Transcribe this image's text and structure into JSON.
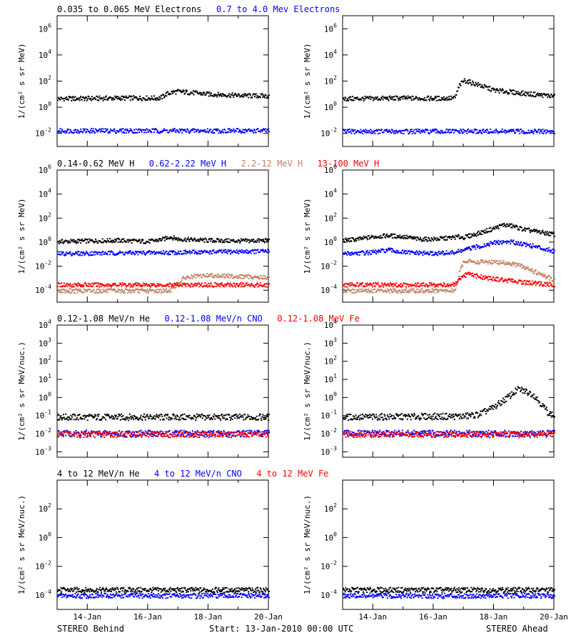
{
  "footer": {
    "left": "STEREO Behind",
    "center": "Start: 13-Jan-2010 00:00 UTC",
    "right": "STEREO Ahead"
  },
  "x_ticks": [
    "14-Jan",
    "16-Jan",
    "18-Jan",
    "20-Jan"
  ],
  "colors": {
    "black": "#000000",
    "blue": "#0000ff",
    "tan": "#c08060",
    "red": "#ff0000"
  },
  "chart_data": [
    {
      "type": "scatter",
      "row": 1,
      "ylabel": "1/(cm² s sr MeV)",
      "ylog": true,
      "ylim_exp": [
        -3,
        7
      ],
      "y_tick_exponents": [
        -2,
        0,
        2,
        4,
        6
      ],
      "x_unit": "days since 13-Jan-2010 00:00 UTC",
      "xlim": [
        0,
        7
      ],
      "legend": [
        {
          "name": "0.035 to 0.065 MeV Electrons",
          "color": "#000000"
        },
        {
          "name": "0.7 to 4.0 Mev Electrons",
          "color": "#0000ff"
        }
      ],
      "panels": [
        {
          "side": "STEREO Behind",
          "series": [
            {
              "name": "0.035 to 0.065 MeV Electrons",
              "color": "#000000",
              "x": [
                0,
                1,
                2,
                3,
                3.4,
                3.6,
                3.8,
                4,
                4.5,
                5,
                6,
                7
              ],
              "log10_y": [
                0.7,
                0.72,
                0.75,
                0.75,
                0.75,
                1.05,
                1.2,
                1.25,
                1.15,
                1.05,
                0.95,
                0.9
              ]
            },
            {
              "name": "0.7 to 4.0 Mev Electrons",
              "color": "#0000ff",
              "x": [
                0,
                7
              ],
              "log10_y": [
                -1.75,
                -1.75
              ]
            }
          ]
        },
        {
          "side": "STEREO Ahead",
          "series": [
            {
              "name": "0.035 to 0.065 MeV Electrons",
              "color": "#000000",
              "x": [
                0,
                1,
                2,
                3,
                3.7,
                3.85,
                4,
                4.5,
                5,
                6,
                7
              ],
              "log10_y": [
                0.7,
                0.72,
                0.75,
                0.72,
                0.75,
                1.7,
                2.1,
                1.75,
                1.35,
                1.1,
                0.9
              ]
            },
            {
              "name": "0.7 to 4.0 Mev Electrons",
              "color": "#0000ff",
              "x": [
                0,
                7
              ],
              "log10_y": [
                -1.8,
                -1.8
              ]
            }
          ]
        }
      ]
    },
    {
      "type": "scatter",
      "row": 2,
      "ylabel": "1/(cm² s sr MeV)",
      "ylog": true,
      "ylim_exp": [
        -5,
        6
      ],
      "y_tick_exponents": [
        -4,
        -2,
        0,
        2,
        4,
        6
      ],
      "x_unit": "days since 13-Jan-2010 00:00 UTC",
      "xlim": [
        0,
        7
      ],
      "legend": [
        {
          "name": "0.14-0.62 MeV H",
          "color": "#000000"
        },
        {
          "name": "0.62-2.22 MeV H",
          "color": "#0000ff"
        },
        {
          "name": "2.2-12 MeV H",
          "color": "#c08060"
        },
        {
          "name": "13-100 MeV H",
          "color": "#ff0000"
        }
      ],
      "panels": [
        {
          "side": "STEREO Behind",
          "series": [
            {
              "name": "0.14-0.62 MeV H",
              "color": "#000000",
              "x": [
                0,
                1,
                2,
                3,
                3.5,
                3.7,
                4,
                5,
                6,
                7
              ],
              "log10_y": [
                0.1,
                0.15,
                0.2,
                0.1,
                0.3,
                0.5,
                0.3,
                0.2,
                0.15,
                0.2
              ]
            },
            {
              "name": "0.62-2.22 MeV H",
              "color": "#0000ff",
              "x": [
                0,
                2,
                4,
                7
              ],
              "log10_y": [
                -0.9,
                -0.85,
                -0.8,
                -0.7
              ]
            },
            {
              "name": "2.2-12 MeV H",
              "color": "#c08060",
              "x": [
                0,
                3.7,
                3.9,
                4.2,
                5,
                6,
                7
              ],
              "log10_y": [
                -4.0,
                -4.0,
                -3.6,
                -2.9,
                -2.7,
                -2.8,
                -2.9
              ]
            },
            {
              "name": "13-100 MeV H",
              "color": "#ff0000",
              "x": [
                0,
                7
              ],
              "log10_y": [
                -3.5,
                -3.5
              ]
            }
          ]
        },
        {
          "side": "STEREO Ahead",
          "series": [
            {
              "name": "0.14-0.62 MeV H",
              "color": "#000000",
              "x": [
                0,
                0.5,
                1,
                1.5,
                2,
                2.5,
                3,
                3.5,
                3.8,
                4,
                4.5,
                5,
                5.3,
                5.6,
                6,
                6.5,
                7
              ],
              "log10_y": [
                0.2,
                0.3,
                0.5,
                0.6,
                0.5,
                0.3,
                0.3,
                0.4,
                0.5,
                0.45,
                0.8,
                1.2,
                1.5,
                1.4,
                1.1,
                0.9,
                0.7
              ]
            },
            {
              "name": "0.62-2.22 MeV H",
              "color": "#0000ff",
              "x": [
                0,
                1,
                1.5,
                2,
                3,
                3.7,
                4,
                4.5,
                5,
                5.5,
                6,
                6.5,
                7
              ],
              "log10_y": [
                -0.9,
                -0.8,
                -0.6,
                -0.8,
                -0.9,
                -0.8,
                -0.6,
                -0.3,
                0.0,
                0.1,
                -0.1,
                -0.4,
                -0.7
              ]
            },
            {
              "name": "2.2-12 MeV H",
              "color": "#c08060",
              "x": [
                0,
                3.7,
                3.85,
                4,
                4.5,
                5,
                5.5,
                6,
                6.5,
                7
              ],
              "log10_y": [
                -4.0,
                -4.0,
                -2.5,
                -1.5,
                -1.6,
                -1.6,
                -1.7,
                -2.0,
                -2.6,
                -3.1
              ]
            },
            {
              "name": "13-100 MeV H",
              "color": "#ff0000",
              "x": [
                0,
                3.7,
                3.9,
                4.1,
                4.5,
                5,
                6,
                7
              ],
              "log10_y": [
                -3.5,
                -3.5,
                -3.0,
                -2.6,
                -2.8,
                -3.0,
                -3.3,
                -3.5
              ]
            }
          ]
        }
      ]
    },
    {
      "type": "scatter",
      "row": 3,
      "ylabel": "1/(cm² s sr MeV/nuc.)",
      "ylog": true,
      "ylim_exp": [
        -3.3,
        4
      ],
      "y_tick_exponents": [
        -3,
        -2,
        -1,
        0,
        1,
        2,
        3,
        4
      ],
      "x_unit": "days since 13-Jan-2010 00:00 UTC",
      "xlim": [
        0,
        7
      ],
      "legend": [
        {
          "name": "0.12-1.08 MeV/n He",
          "color": "#000000"
        },
        {
          "name": "0.12-1.08 MeV/n CNO",
          "color": "#0000ff"
        },
        {
          "name": "0.12-1.08 MeV Fe",
          "color": "#ff0000"
        }
      ],
      "panels": [
        {
          "side": "STEREO Behind",
          "series": [
            {
              "name": "0.12-1.08 MeV/n He",
              "color": "#000000",
              "x": [
                0,
                7
              ],
              "log10_y": [
                -1.05,
                -1.05
              ]
            },
            {
              "name": "0.12-1.08 MeV/n CNO",
              "color": "#0000ff",
              "x": [
                0,
                7
              ],
              "log10_y": [
                -1.95,
                -1.95
              ]
            },
            {
              "name": "0.12-1.08 MeV Fe",
              "color": "#ff0000",
              "x": [
                0,
                7
              ],
              "log10_y": [
                -2.0,
                -2.0
              ]
            }
          ]
        },
        {
          "side": "STEREO Ahead",
          "series": [
            {
              "name": "0.12-1.08 MeV/n He",
              "color": "#000000",
              "x": [
                0,
                4,
                4.5,
                5,
                5.5,
                5.8,
                6,
                6.3,
                6.5,
                6.8,
                7
              ],
              "log10_y": [
                -1.05,
                -1.0,
                -0.9,
                -0.5,
                0.1,
                0.5,
                0.4,
                0.2,
                -0.2,
                -0.8,
                -1.0
              ]
            },
            {
              "name": "0.12-1.08 MeV/n CNO",
              "color": "#0000ff",
              "x": [
                0,
                7
              ],
              "log10_y": [
                -1.95,
                -1.95
              ]
            },
            {
              "name": "0.12-1.08 MeV Fe",
              "color": "#ff0000",
              "x": [
                0,
                7
              ],
              "log10_y": [
                -2.0,
                -2.0
              ]
            }
          ]
        }
      ]
    },
    {
      "type": "scatter",
      "row": 4,
      "ylabel": "1/(cm² s sr MeV/nuc.)",
      "ylog": true,
      "ylim_exp": [
        -5,
        4
      ],
      "y_tick_exponents": [
        -4,
        -2,
        0,
        2
      ],
      "x_unit": "days since 13-Jan-2010 00:00 UTC",
      "xlim": [
        0,
        7
      ],
      "legend": [
        {
          "name": "4 to 12 MeV/n He",
          "color": "#000000"
        },
        {
          "name": "4 to 12 MeV/n CNO",
          "color": "#0000ff"
        },
        {
          "name": "4 to 12 MeV Fe",
          "color": "#ff0000"
        }
      ],
      "panels": [
        {
          "side": "STEREO Behind",
          "series": [
            {
              "name": "4 to 12 MeV/n He",
              "color": "#000000",
              "x": [
                0,
                7
              ],
              "log10_y": [
                -3.6,
                -3.6
              ]
            },
            {
              "name": "4 to 12 MeV/n CNO",
              "color": "#0000ff",
              "x": [
                0,
                7
              ],
              "log10_y": [
                -4.0,
                -4.0
              ]
            }
          ]
        },
        {
          "side": "STEREO Ahead",
          "series": [
            {
              "name": "4 to 12 MeV/n He",
              "color": "#000000",
              "x": [
                0,
                7
              ],
              "log10_y": [
                -3.6,
                -3.6
              ]
            },
            {
              "name": "4 to 12 MeV/n CNO",
              "color": "#0000ff",
              "x": [
                0,
                7
              ],
              "log10_y": [
                -4.0,
                -4.0
              ]
            }
          ]
        }
      ]
    }
  ]
}
